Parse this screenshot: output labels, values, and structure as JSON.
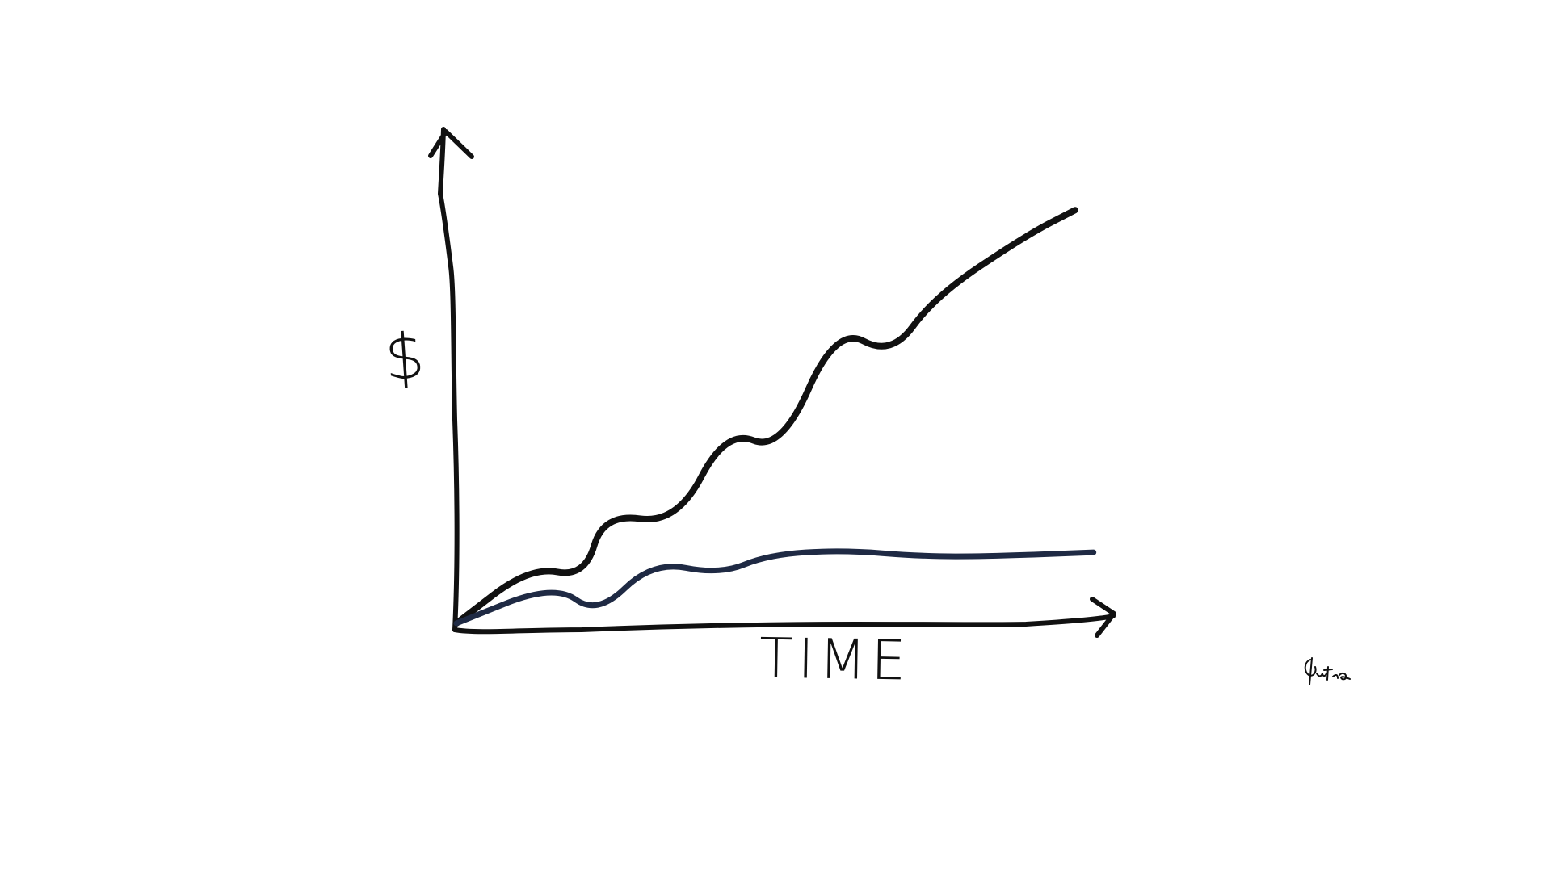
{
  "chart_data": {
    "type": "line",
    "title": "",
    "xlabel": "TIME",
    "ylabel": "$",
    "xlim": [
      0,
      12
    ],
    "ylim": [
      0,
      10
    ],
    "grid": false,
    "legend": "none",
    "axis_style": "hand-drawn arrows",
    "series": [
      {
        "color": "#111111",
        "x": [
          0,
          1.2,
          2.1,
          2.4,
          3.6,
          4.4,
          5.3,
          6.2,
          7.1,
          7.8,
          9.3,
          10.1
        ],
        "y": [
          0,
          1.25,
          1.02,
          2.43,
          2.2,
          4.29,
          3.8,
          6.57,
          5.91,
          7.22,
          8.58,
          9.14
        ]
      },
      {
        "color": "#1f2a44",
        "x": [
          0,
          1.6,
          2.3,
          3.2,
          4.3,
          5.1,
          6.3,
          7.6,
          8.7,
          10.4
        ],
        "y": [
          0,
          0.87,
          0.18,
          1.37,
          1.08,
          1.52,
          1.62,
          1.48,
          1.48,
          1.57
        ]
      }
    ]
  },
  "signature": {
    "text": "Gutha"
  }
}
